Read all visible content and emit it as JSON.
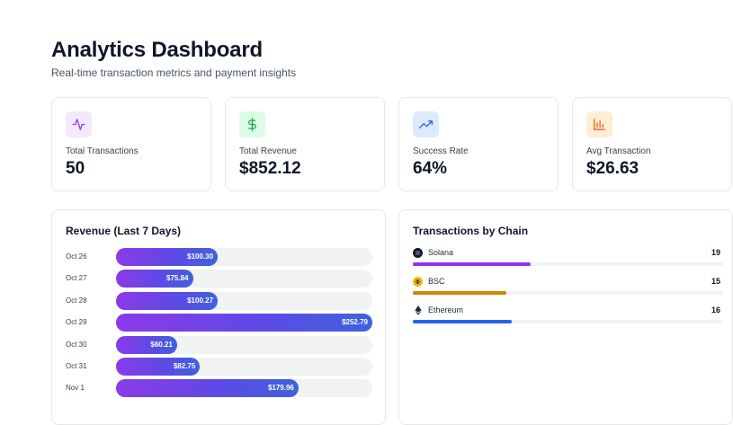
{
  "header": {
    "title": "Analytics Dashboard",
    "subtitle": "Real-time transaction metrics and payment insights"
  },
  "stats": [
    {
      "label": "Total Transactions",
      "value": "50",
      "icon": "activity-icon",
      "icon_bg": "#f3e8ff",
      "icon_color": "#9333ea"
    },
    {
      "label": "Total Revenue",
      "value": "$852.12",
      "icon": "dollar-icon",
      "icon_bg": "#dcfce7",
      "icon_color": "#16a34a"
    },
    {
      "label": "Success Rate",
      "value": "64%",
      "icon": "trending-up-icon",
      "icon_bg": "#dbeafe",
      "icon_color": "#2563eb"
    },
    {
      "label": "Avg Transaction",
      "value": "$26.63",
      "icon": "bar-chart-icon",
      "icon_bg": "#ffedd5",
      "icon_color": "#ea580c"
    }
  ],
  "revenue": {
    "title": "Revenue (Last 7 Days)",
    "days": [
      {
        "date": "Oct 26",
        "amount": "$100.30"
      },
      {
        "date": "Oct 27",
        "amount": "$75.84"
      },
      {
        "date": "Oct 28",
        "amount": "$100.27"
      },
      {
        "date": "Oct 29",
        "amount": "$252.79"
      },
      {
        "date": "Oct 30",
        "amount": "$60.21"
      },
      {
        "date": "Oct 31",
        "amount": "$82.75"
      },
      {
        "date": "Nov 1",
        "amount": "$179.96"
      }
    ]
  },
  "chains": {
    "title": "Transactions by Chain",
    "items": [
      {
        "name": "Solana",
        "count": "19",
        "color": "#9333ea",
        "icon": "solana-icon"
      },
      {
        "name": "BSC",
        "count": "15",
        "color": "#ca8a04",
        "icon": "bsc-icon"
      },
      {
        "name": "Ethereum",
        "count": "16",
        "color": "#2563eb",
        "icon": "ethereum-icon"
      }
    ]
  },
  "chart_data": [
    {
      "type": "bar",
      "title": "Revenue (Last 7 Days)",
      "categories": [
        "Oct 26",
        "Oct 27",
        "Oct 28",
        "Oct 29",
        "Oct 30",
        "Oct 31",
        "Nov 1"
      ],
      "values": [
        100.3,
        75.84,
        100.27,
        252.79,
        60.21,
        82.75,
        179.96
      ],
      "xlim": [
        0,
        252.79
      ]
    },
    {
      "type": "bar",
      "title": "Transactions by Chain",
      "categories": [
        "Solana",
        "BSC",
        "Ethereum"
      ],
      "values": [
        19,
        15,
        16
      ],
      "xlim": [
        0,
        50
      ]
    }
  ]
}
